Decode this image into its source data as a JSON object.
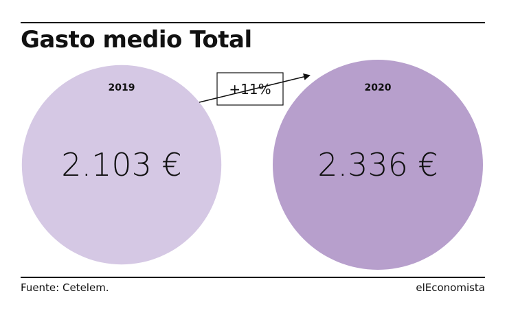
{
  "title": "Gasto medio Total",
  "change_label": "+11%",
  "source": "Fuente: Cetelem.",
  "brand": "elEconomista",
  "colors": {
    "series_2019": "#d5c8e4",
    "series_2020": "#b79fcc",
    "text": "#111111"
  },
  "chart_data": {
    "type": "bubble",
    "title": "Gasto medio Total",
    "categories": [
      "2019",
      "2020"
    ],
    "values": [
      2103,
      2336
    ],
    "value_labels": [
      "2.103 €",
      "2.336 €"
    ],
    "change": "+11%",
    "legend": "none",
    "grid": false
  }
}
